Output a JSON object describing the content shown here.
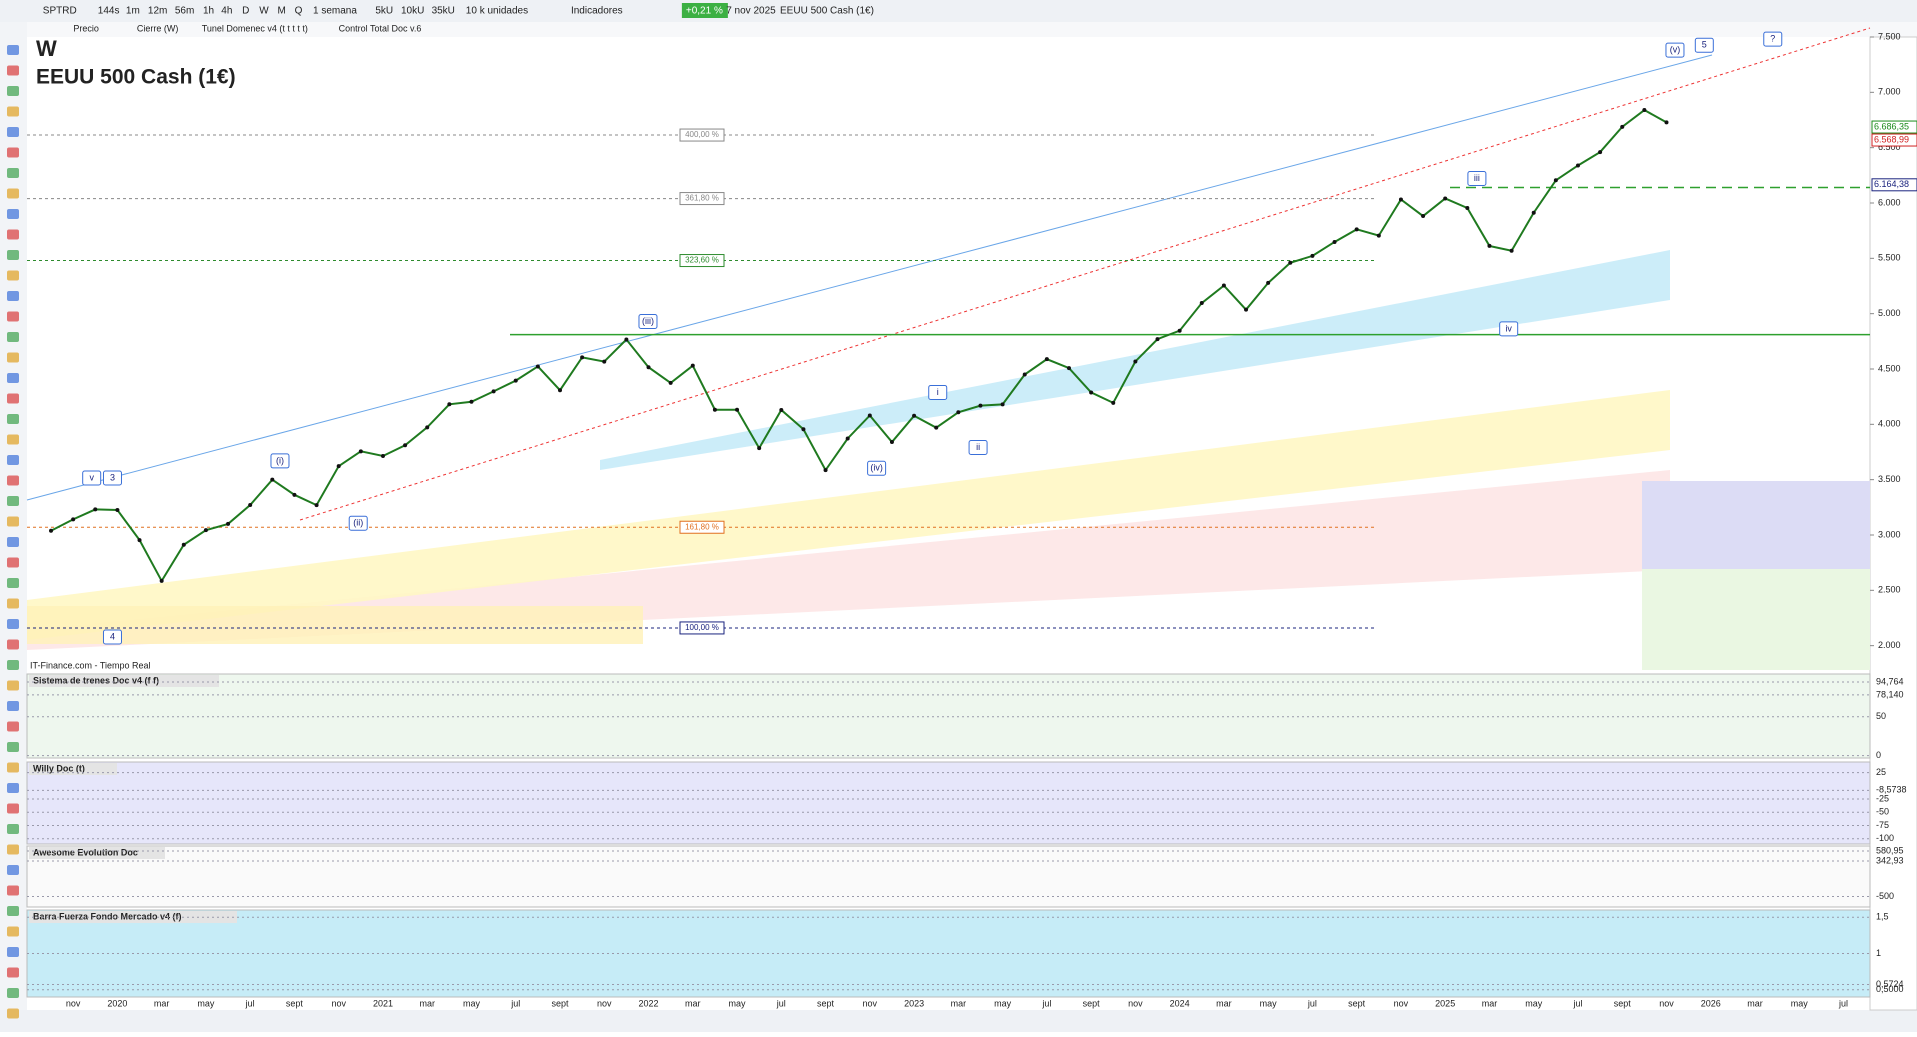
{
  "toolbar": {
    "items": [
      "SPTRD",
      "144s",
      "1m",
      "12m",
      "56m",
      "1h",
      "4h",
      "D",
      "W",
      "M",
      "Q",
      "1 semana",
      "5kU",
      "10kU",
      "35kU",
      "10 k unidades",
      "Indicadores",
      "+0,21 %",
      "7 nov 2025",
      "EEUU 500 Cash (1€)"
    ],
    "studies": [
      "Precio",
      "Cierre (W)",
      "Tunel Domenec v4 (t t t t t)",
      "Control Total Doc v.6"
    ]
  },
  "chart_data": {
    "type": "line",
    "timeframe": "W",
    "title": "EEUU 500 Cash (1€)",
    "source": "IT-Finance.com - Tiempo Real",
    "x": [
      "2019-10",
      "2019-11",
      "2019-12",
      "2020-01",
      "2020-02",
      "2020-03",
      "2020-04",
      "2020-05",
      "2020-06",
      "2020-07",
      "2020-08",
      "2020-09",
      "2020-10",
      "2020-11",
      "2020-12",
      "2021-01",
      "2021-02",
      "2021-03",
      "2021-04",
      "2021-05",
      "2021-06",
      "2021-07",
      "2021-08",
      "2021-09",
      "2021-10",
      "2021-11",
      "2021-12",
      "2022-01",
      "2022-02",
      "2022-03",
      "2022-04",
      "2022-05",
      "2022-06",
      "2022-07",
      "2022-08",
      "2022-09",
      "2022-10",
      "2022-11",
      "2022-12",
      "2023-01",
      "2023-02",
      "2023-03",
      "2023-04",
      "2023-05",
      "2023-06",
      "2023-07",
      "2023-08",
      "2023-09",
      "2023-10",
      "2023-11",
      "2023-12",
      "2024-01",
      "2024-02",
      "2024-03",
      "2024-04",
      "2024-05",
      "2024-06",
      "2024-07",
      "2024-08",
      "2024-09",
      "2024-10",
      "2024-11",
      "2024-12",
      "2025-01",
      "2025-02",
      "2025-03",
      "2025-04",
      "2025-05",
      "2025-06",
      "2025-07",
      "2025-08",
      "2025-09",
      "2025-10",
      "2025-11"
    ],
    "series": [
      {
        "name": "Cierre (W)",
        "color": "#1f7a1f",
        "values": [
          3038,
          3141,
          3231,
          3226,
          2954,
          2585,
          2912,
          3044,
          3100,
          3271,
          3500,
          3363,
          3270,
          3622,
          3756,
          3714,
          3811,
          3973,
          4181,
          4204,
          4298,
          4395,
          4523,
          4308,
          4605,
          4567,
          4766,
          4516,
          4374,
          4530,
          4132,
          4132,
          3785,
          4130,
          3955,
          3586,
          3872,
          4080,
          3840,
          4077,
          3970,
          4109,
          4169,
          4180,
          4450,
          4589,
          4508,
          4288,
          4194,
          4568,
          4770,
          4846,
          5096,
          5254,
          5036,
          5278,
          5460,
          5522,
          5648,
          5762,
          5705,
          6032,
          5882,
          6041,
          5955,
          5612,
          5569,
          5912,
          6205,
          6339,
          6460,
          6688,
          6840,
          6728
        ]
      }
    ],
    "ylim": [
      1780,
      7500
    ],
    "yticks": [
      {
        "value": 2000,
        "label": "2.000"
      },
      {
        "value": 2500,
        "label": "2.500"
      },
      {
        "value": 3000,
        "label": "3.000"
      },
      {
        "value": 3500,
        "label": "3.500"
      },
      {
        "value": 4000,
        "label": "4.000"
      },
      {
        "value": 4500,
        "label": "4.500"
      },
      {
        "value": 5000,
        "label": "5.000"
      },
      {
        "value": 5500,
        "label": "5.500"
      },
      {
        "value": 6000,
        "label": "6.000"
      },
      {
        "value": 6500,
        "label": "6.500"
      },
      {
        "value": 7000,
        "label": "7.000"
      },
      {
        "value": 7500,
        "label": "7.500"
      }
    ],
    "xaxis_labels": [
      "nov",
      "2020",
      "mar",
      "may",
      "jul",
      "sept",
      "nov",
      "2021",
      "mar",
      "may",
      "jul",
      "sept",
      "nov",
      "2022",
      "mar",
      "may",
      "jul",
      "sept",
      "nov",
      "2023",
      "mar",
      "may",
      "jul",
      "sept",
      "nov",
      "2024",
      "mar",
      "may",
      "jul",
      "sept",
      "nov",
      "2025",
      "mar",
      "may",
      "jul",
      "sept",
      "nov",
      "2026",
      "mar",
      "may",
      "jul"
    ],
    "last_values": [
      {
        "value": 6686.35,
        "label": "6.686,35",
        "color": "#1a8a1a"
      },
      {
        "value": 6568.99,
        "label": "6.568,99",
        "color": "#d02020"
      },
      {
        "value": 6164.38,
        "label": "6.164,38",
        "color": "#1a237e"
      }
    ],
    "fib_levels": [
      {
        "label": "400,00 %",
        "price": 6614,
        "color": "#888888"
      },
      {
        "label": "361,80 %",
        "price": 6040,
        "color": "#888888"
      },
      {
        "label": "323,60 %",
        "price": 5480,
        "color": "#2e8b2e"
      },
      {
        "label": "161,80 %",
        "price": 3070,
        "color": "#e07020"
      },
      {
        "label": "100,00 %",
        "price": 2160,
        "color": "#1a237e"
      }
    ],
    "wave_labels": [
      "(v)",
      "5",
      "?",
      "(iii)",
      "iii",
      "iv",
      "(iv)",
      "i",
      "ii",
      "(i)",
      "(ii)",
      "v",
      "3",
      "4"
    ],
    "support_lines": [
      {
        "price": 4810,
        "color": "#2ea02e",
        "dashed": false
      },
      {
        "price": 6140,
        "color": "#2ea02e",
        "dashed": true
      }
    ],
    "panels": [
      {
        "title": "Sistema de trenes Doc v4 (f f)",
        "ylim": [
          -3,
          105
        ],
        "ticks": [
          {
            "value": 94.764,
            "label": "94,764"
          },
          {
            "value": 78.14,
            "label": "78,140"
          },
          50,
          0
        ]
      },
      {
        "title": "Willy Doc (t)",
        "ylim": [
          -110,
          45
        ],
        "ticks": [
          {
            "value": -8.5738,
            "label": "-8,5738"
          },
          25,
          -25,
          -50,
          -75,
          -100
        ]
      },
      {
        "title": "Awesome Evolution Doc",
        "ylim": [
          -750,
          700
        ],
        "ticks": [
          {
            "value": 580.95,
            "label": "580,95"
          },
          {
            "value": 342.93,
            "label": "342,93"
          },
          -500
        ]
      },
      {
        "title": "Barra Fuerza Fondo Mercado v4 (f)",
        "ylim": [
          0.4,
          1.6
        ],
        "ticks": [
          {
            "value": 1.5,
            "label": "1,5"
          },
          1,
          {
            "value": 0.5724,
            "label": "0,5724"
          },
          {
            "value": 0.5,
            "label": "0,5000"
          }
        ]
      }
    ]
  }
}
